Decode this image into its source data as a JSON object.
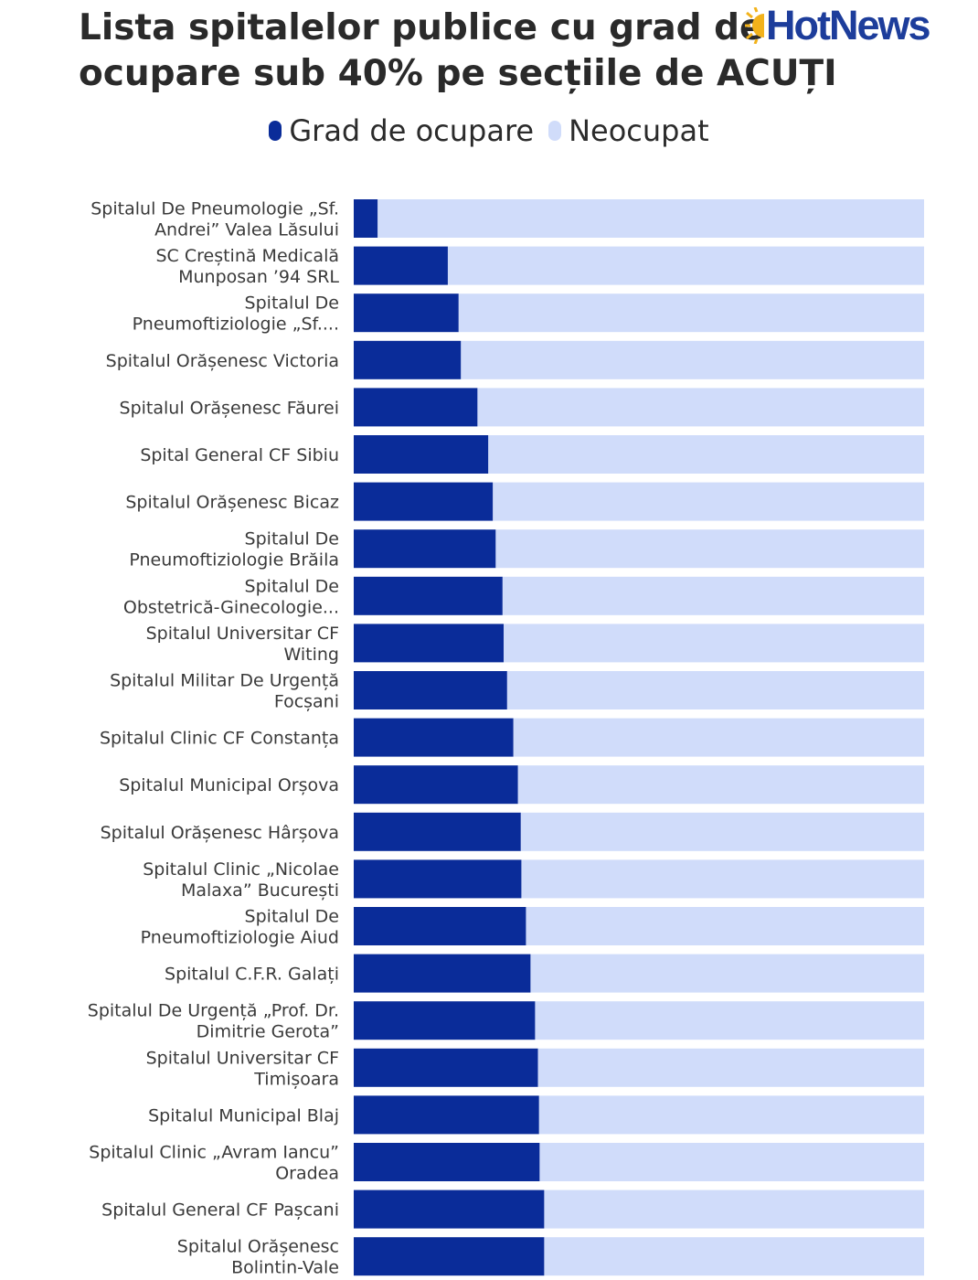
{
  "title": {
    "line1": "Lista spitalelor publice cu grad de",
    "line2": "ocupare sub 40% pe secțiile de ACUȚI"
  },
  "logo": {
    "text": "HotNews",
    "sun_color": "#f2b21b",
    "text_color": "#1d3d9b"
  },
  "legend": [
    {
      "label": "Grad de ocupare",
      "color": "#0a2c99"
    },
    {
      "label": "Neocupat",
      "color": "#d0dcfa"
    }
  ],
  "chart_data": {
    "type": "bar",
    "orientation": "horizontal",
    "stacked": true,
    "xlim": [
      0,
      100
    ],
    "unit": "%",
    "grid": false,
    "legend_position": "top-center",
    "categories": [
      [
        "Spitalul De Pneumologie „Sf.",
        "Andrei” Valea Lăsului"
      ],
      [
        "SC Creștină Medicală",
        "Munposan ’94 SRL"
      ],
      [
        "Spitalul De",
        "Pneumoftiziologie „Sf...."
      ],
      [
        "Spitalul Orășenesc Victoria"
      ],
      [
        "Spitalul Orășenesc Făurei"
      ],
      [
        "Spital General CF Sibiu"
      ],
      [
        "Spitalul Orășenesc Bicaz"
      ],
      [
        "Spitalul De",
        "Pneumoftiziologie Brăila"
      ],
      [
        "Spitalul De",
        "Obstetrică-Ginecologie..."
      ],
      [
        "Spitalul Universitar CF",
        "Witing"
      ],
      [
        "Spitalul Militar De Urgență",
        "Focșani"
      ],
      [
        "Spitalul Clinic CF Constanța"
      ],
      [
        "Spitalul Municipal Orșova"
      ],
      [
        "Spitalul Orășenesc Hârșova"
      ],
      [
        "Spitalul Clinic „Nicolae",
        "Malaxa” București"
      ],
      [
        "Spitalul De",
        "Pneumoftiziologie Aiud"
      ],
      [
        "Spitalul C.F.R. Galați"
      ],
      [
        "Spitalul De Urgență „Prof. Dr.",
        "Dimitrie Gerota”"
      ],
      [
        "Spitalul Universitar CF",
        "Timișoara"
      ],
      [
        "Spitalul Municipal Blaj"
      ],
      [
        "Spitalul Clinic „Avram Iancu”",
        "Oradea"
      ],
      [
        "Spitalul General CF Pașcani"
      ],
      [
        "Spitalul Orășenesc",
        "Bolintin-Vale"
      ]
    ],
    "series": [
      {
        "name": "Grad de ocupare",
        "color": "#0a2c99",
        "values": [
          4.2,
          16.5,
          18.4,
          18.8,
          21.7,
          23.6,
          24.4,
          24.9,
          26.1,
          26.3,
          26.9,
          28.0,
          28.8,
          29.3,
          29.4,
          30.2,
          31.0,
          31.8,
          32.3,
          32.5,
          32.6,
          33.4,
          33.4
        ]
      },
      {
        "name": "Neocupat",
        "color": "#d0dcfa",
        "values": [
          95.8,
          83.5,
          81.6,
          81.2,
          78.3,
          76.4,
          75.6,
          75.1,
          73.9,
          73.7,
          73.1,
          72.0,
          71.2,
          70.7,
          70.6,
          69.8,
          69.0,
          68.2,
          67.7,
          67.5,
          67.4,
          66.6,
          66.6
        ]
      }
    ]
  }
}
